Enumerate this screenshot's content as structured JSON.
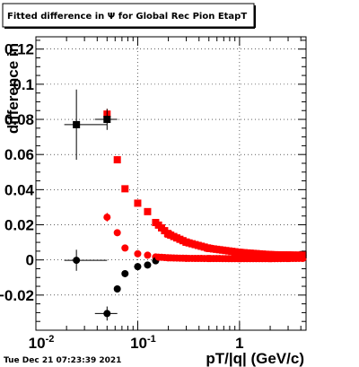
{
  "chart_data": {
    "type": "scatter",
    "title": "Fitted difference in  Ψ  for Global Rec Pion EtapT",
    "xlabel": "pT/|q| (GeV/c)",
    "ylabel": "difference in",
    "x_scale": "log",
    "xlim": [
      0.01,
      4.5
    ],
    "ylim": [
      -0.04,
      0.127
    ],
    "grid": true,
    "x_tick_labels": [
      {
        "value": 0.01,
        "base": "10",
        "exp": "-2"
      },
      {
        "value": 0.1,
        "base": "10",
        "exp": "-1"
      },
      {
        "value": 1,
        "base": "1",
        "exp": ""
      }
    ],
    "y_ticks": [
      -0.02,
      0,
      0.02,
      0.04,
      0.06,
      0.08,
      0.1,
      0.12
    ],
    "y_tick_labels": [
      "−0.02",
      "0",
      "0.02",
      "0.04",
      "0.06",
      "0.08",
      "0.1",
      "0.12"
    ],
    "series": [
      {
        "color": "#ff0000",
        "marker": "square",
        "x": [
          0.05,
          0.063,
          0.075,
          0.1,
          0.125,
          0.15,
          0.2,
          0.3,
          0.5,
          1,
          2,
          3,
          4.2
        ],
        "y": [
          0.083,
          0.057,
          0.0405,
          0.0323,
          0.0275,
          0.0213,
          0.0147,
          0.0101,
          0.0066,
          0.0043,
          0.003,
          0.0028,
          0.0027
        ],
        "err_y": [
          0.003,
          0.002,
          0.0015,
          0.0012,
          0.001,
          0.001,
          0.0008,
          0.0006,
          0.0005,
          0.0004,
          0.0003,
          0.0003,
          0.0003
        ]
      },
      {
        "color": "#ff0000",
        "marker": "circle",
        "x": [
          0.05,
          0.063,
          0.075,
          0.1,
          0.125,
          0.15,
          0.2,
          0.3,
          0.5,
          1,
          2,
          3,
          4.2
        ],
        "y": [
          0.0243,
          0.0155,
          0.0068,
          0.0035,
          0.0027,
          0.0017,
          0.0012,
          0.0009,
          0.0008,
          0.0007,
          0.0007,
          0.0008,
          0.0009
        ],
        "err_y": [
          0.0025,
          0.0015,
          0.001,
          0.0008,
          0.0006,
          0.0005,
          0.0004,
          0.0003,
          0.0003,
          0.0003,
          0.0003,
          0.0003,
          0.0003
        ]
      },
      {
        "color": "#000000",
        "marker": "square",
        "x": [
          0.025,
          0.05,
          4.2
        ],
        "y": [
          0.077,
          0.08,
          0.003
        ],
        "xerr": [
          [
            0.006,
            0.025
          ],
          [
            0.012,
            0.013
          ],
          [
            0.2,
            0.2
          ]
        ],
        "err_y": [
          0.02,
          0.006,
          0.001
        ]
      },
      {
        "color": "#000000",
        "marker": "circle",
        "x": [
          0.025,
          0.05,
          0.063,
          0.075,
          0.1,
          0.125,
          0.15,
          4.2
        ],
        "y": [
          -0.0002,
          -0.0305,
          -0.0165,
          -0.0078,
          -0.0038,
          -0.0029,
          -0.0005,
          0.0025
        ],
        "xerr": [
          [
            0.006,
            0.025
          ],
          [
            0.012,
            0.013
          ],
          [
            0.004,
            0.005
          ],
          [
            0.005,
            0.006
          ],
          [
            0.008,
            0.008
          ],
          [
            0.008,
            0.008
          ],
          [
            0.008,
            0.008
          ],
          [
            0.2,
            0.2
          ]
        ],
        "err_y": [
          0.006,
          0.004,
          0.002,
          0.0015,
          0.001,
          0.001,
          0.0008,
          0.001
        ]
      }
    ]
  },
  "footer": {
    "timestamp": "Tue Dec 21 07:23:39 2021"
  }
}
